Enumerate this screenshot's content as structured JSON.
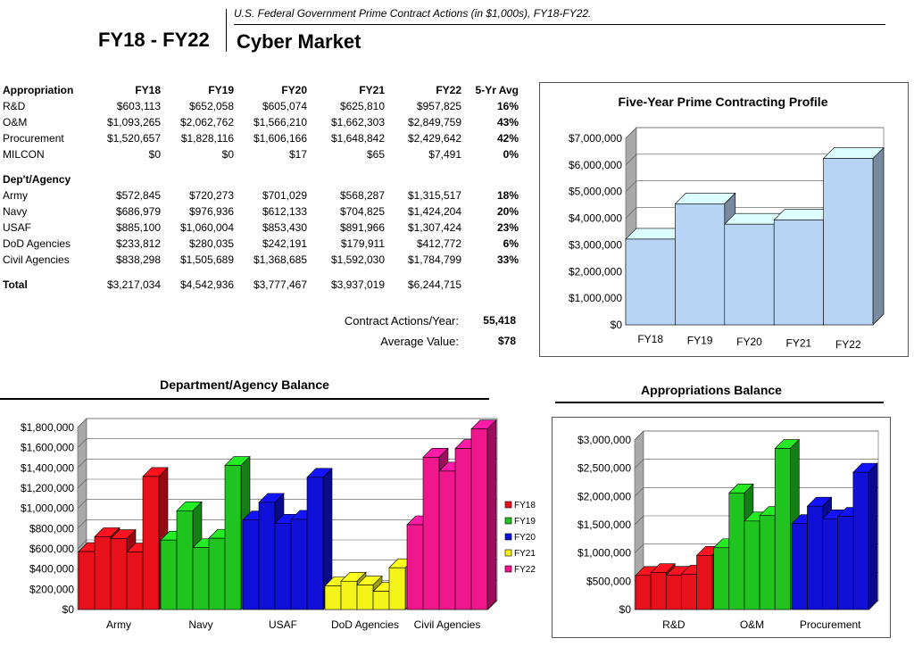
{
  "header": {
    "years": "FY18 - FY22",
    "title": "Cyber Market",
    "subtitle": "U.S. Federal Government Prime Contract Actions (in $1,000s), FY18-FY22."
  },
  "table": {
    "col_headers": [
      "FY18",
      "FY19",
      "FY20",
      "FY21",
      "FY22",
      "5-Yr Avg"
    ],
    "appropriation_label": "Appropriation",
    "appropriation_rows": [
      {
        "label": "R&D",
        "values": [
          "$603,113",
          "$652,058",
          "$605,074",
          "$625,810",
          "$957,825"
        ],
        "avg": "16%"
      },
      {
        "label": "O&M",
        "values": [
          "$1,093,265",
          "$2,062,762",
          "$1,566,210",
          "$1,662,303",
          "$2,849,759"
        ],
        "avg": "43%"
      },
      {
        "label": "Procurement",
        "values": [
          "$1,520,657",
          "$1,828,116",
          "$1,606,166",
          "$1,648,842",
          "$2,429,642"
        ],
        "avg": "42%"
      },
      {
        "label": "MILCON",
        "values": [
          "$0",
          "$0",
          "$17",
          "$65",
          "$7,491"
        ],
        "avg": "0%"
      }
    ],
    "agency_label": "Dep't/Agency",
    "agency_rows": [
      {
        "label": "Army",
        "values": [
          "$572,845",
          "$720,273",
          "$701,029",
          "$568,287",
          "$1,315,517"
        ],
        "avg": "18%"
      },
      {
        "label": "Navy",
        "values": [
          "$686,979",
          "$976,936",
          "$612,133",
          "$704,825",
          "$1,424,204"
        ],
        "avg": "20%"
      },
      {
        "label": "USAF",
        "values": [
          "$885,100",
          "$1,060,004",
          "$853,430",
          "$891,966",
          "$1,307,424"
        ],
        "avg": "23%"
      },
      {
        "label": "DoD Agencies",
        "values": [
          "$233,812",
          "$280,035",
          "$242,191",
          "$179,911",
          "$412,772"
        ],
        "avg": "6%"
      },
      {
        "label": "Civil Agencies",
        "values": [
          "$838,298",
          "$1,505,689",
          "$1,368,685",
          "$1,592,030",
          "$1,784,799"
        ],
        "avg": "33%"
      }
    ],
    "total": {
      "label": "Total",
      "values": [
        "$3,217,034",
        "$4,542,936",
        "$3,777,467",
        "$3,937,019",
        "$6,244,715"
      ]
    },
    "summary": [
      {
        "label": "Contract Actions/Year:",
        "value": "55,418"
      },
      {
        "label": "Average Value:",
        "value": "$78"
      }
    ]
  },
  "chart_data": [
    {
      "type": "bar",
      "title": "Five-Year Prime Contracting Profile",
      "categories": [
        "FY18",
        "FY19",
        "FY20",
        "FY21",
        "FY22"
      ],
      "values": [
        3217034,
        4542936,
        3777467,
        3937019,
        6244715
      ],
      "ylim": [
        0,
        7000000
      ],
      "yticks": [
        "$0",
        "$1,000,000",
        "$2,000,000",
        "$3,000,000",
        "$4,000,000",
        "$5,000,000",
        "$6,000,000",
        "$7,000,000"
      ],
      "color": "#b7d4f4",
      "grid": true
    },
    {
      "type": "bar",
      "title": "Department/Agency Balance",
      "categories": [
        "Army",
        "Navy",
        "USAF",
        "DoD Agencies",
        "Civil Agencies"
      ],
      "series": [
        {
          "name": "FY18",
          "values": [
            572845,
            686979,
            885100,
            233812,
            838298
          ]
        },
        {
          "name": "FY19",
          "values": [
            720273,
            976936,
            1060004,
            280035,
            1505689
          ]
        },
        {
          "name": "FY20",
          "values": [
            701029,
            612133,
            853430,
            242191,
            1368685
          ]
        },
        {
          "name": "FY21",
          "values": [
            568287,
            704825,
            891966,
            179911,
            1592030
          ]
        },
        {
          "name": "FY22",
          "values": [
            1315517,
            1424204,
            1307424,
            412772,
            1784799
          ]
        }
      ],
      "category_colors": [
        "#e8101a",
        "#1fc41f",
        "#1010d8",
        "#f4f418",
        "#f0168c"
      ],
      "legend_colors": [
        "#e8101a",
        "#1fc41f",
        "#1010d8",
        "#f4f418",
        "#f0168c"
      ],
      "ylim": [
        0,
        1800000
      ],
      "yticks": [
        "$0",
        "$200,000",
        "$400,000",
        "$600,000",
        "$800,000",
        "$1,000,000",
        "$1,200,000",
        "$1,400,000",
        "$1,600,000",
        "$1,800,000"
      ],
      "legend": "right",
      "grid": true
    },
    {
      "type": "bar",
      "title": "Appropriations Balance",
      "categories": [
        "R&D",
        "O&M",
        "Procurement"
      ],
      "series": [
        {
          "name": "FY18",
          "values": [
            603113,
            1093265,
            1520657
          ]
        },
        {
          "name": "FY19",
          "values": [
            652058,
            2062762,
            1828116
          ]
        },
        {
          "name": "FY20",
          "values": [
            605074,
            1566210,
            1606166
          ]
        },
        {
          "name": "FY21",
          "values": [
            625810,
            1662303,
            1648842
          ]
        },
        {
          "name": "FY22",
          "values": [
            957825,
            2849759,
            2429642
          ]
        }
      ],
      "category_colors": [
        "#e8101a",
        "#1fc41f",
        "#1010d8"
      ],
      "ylim": [
        0,
        3000000
      ],
      "yticks": [
        "$0",
        "$500,000",
        "$1,000,000",
        "$1,500,000",
        "$2,000,000",
        "$2,500,000",
        "$3,000,000"
      ],
      "grid": true
    }
  ]
}
